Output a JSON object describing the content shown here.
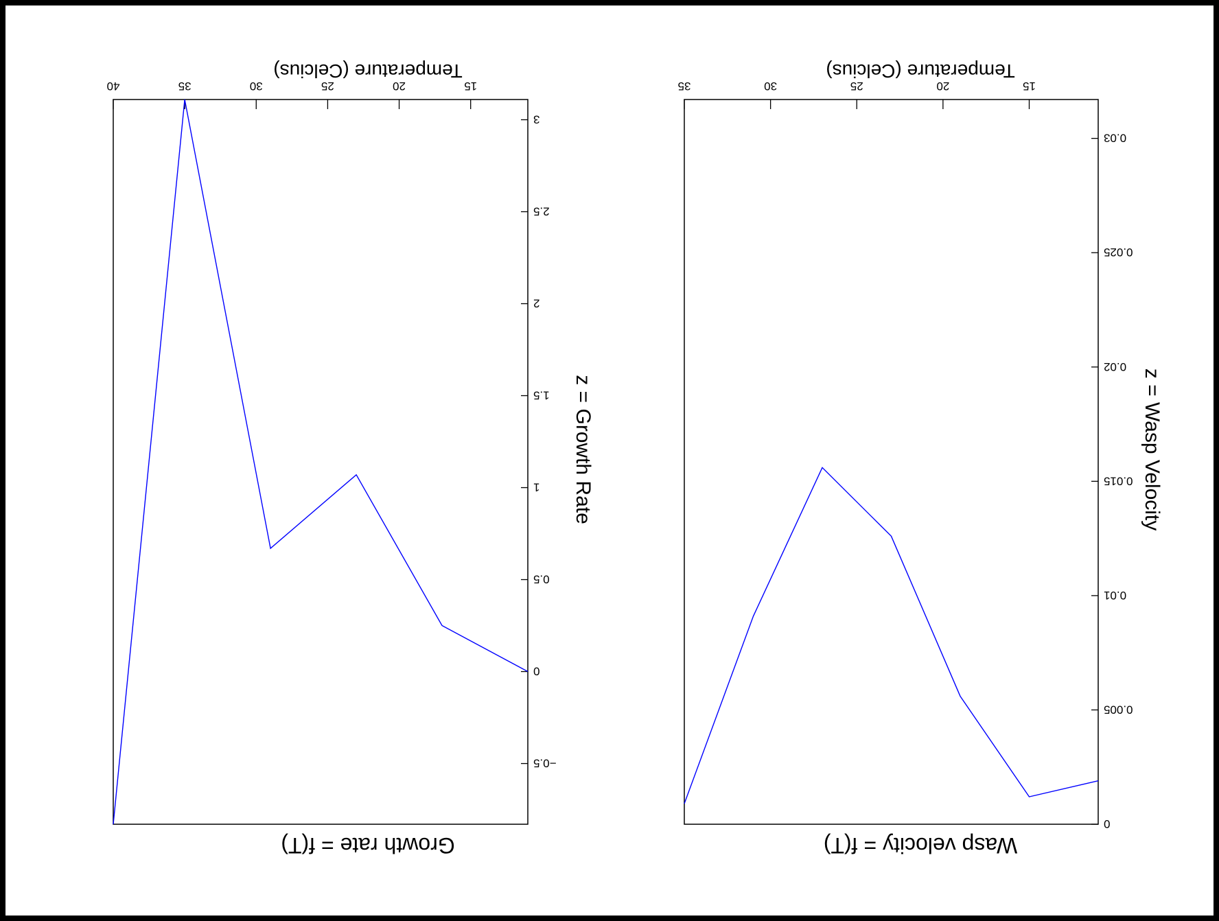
{
  "chart_data": [
    {
      "type": "line",
      "title": "Wasp velocity = f(T)",
      "xlabel": "Temperature (Celcius)",
      "ylabel": "z = Wasp Velocity",
      "rotation_deg": 180,
      "xlim": [
        11,
        35
      ],
      "ylim": [
        0,
        0.0317
      ],
      "x_ticks": [
        15,
        20,
        25,
        30,
        35
      ],
      "x_tick_labels": [
        "15",
        "20",
        "25",
        "30",
        "35"
      ],
      "y_ticks": [
        0,
        0.005,
        0.01,
        0.015,
        0.02,
        0.025,
        0.03
      ],
      "y_tick_labels": [
        "0",
        "0.005",
        "0.01",
        "0.015",
        "0.02",
        "0.025",
        "0.03"
      ],
      "grid": false,
      "color": "#0000ff",
      "series": [
        {
          "x": [
            35.0,
            31.0,
            27.0,
            23.0,
            19.0,
            15.0,
            11.0
          ],
          "y": [
            0.0009,
            0.0091,
            0.0156,
            0.0126,
            0.0056,
            0.0012,
            0.0019
          ]
        }
      ]
    },
    {
      "type": "line",
      "title": "Growth rate = f(T)",
      "xlabel": "Temperature (Celcius)",
      "ylabel": "z = Growth Rate",
      "rotation_deg": 180,
      "xlim": [
        11,
        40
      ],
      "ylim": [
        -0.83,
        3.11
      ],
      "x_ticks": [
        15,
        20,
        25,
        30,
        35,
        40
      ],
      "x_tick_labels": [
        "15",
        "20",
        "25",
        "30",
        "35",
        "40"
      ],
      "y_ticks": [
        -0.5,
        0,
        0.5,
        1,
        1.5,
        2,
        2.5,
        3
      ],
      "y_tick_labels": [
        "−0.5",
        "0",
        "0.5",
        "1",
        "1.5",
        "2",
        "2.5",
        "3"
      ],
      "grid": false,
      "color": "#0000ff",
      "series": [
        {
          "x": [
            40.0,
            35.0,
            29.0,
            23.0,
            17.0,
            11.0
          ],
          "y": [
            -0.83,
            3.11,
            0.67,
            1.07,
            0.25,
            0.0
          ]
        }
      ]
    }
  ]
}
